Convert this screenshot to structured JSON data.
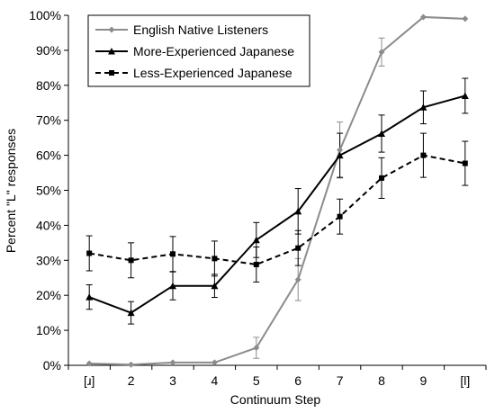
{
  "chart_data": {
    "type": "line",
    "title": "",
    "xlabel": "Continuum Step",
    "ylabel": "Percent \"L\" responses",
    "categories": [
      "[ɹ]",
      "2",
      "3",
      "4",
      "5",
      "6",
      "7",
      "8",
      "9",
      "[l]"
    ],
    "ylim": [
      0,
      100
    ],
    "yticks": [
      "0%",
      "10%",
      "20%",
      "30%",
      "40%",
      "50%",
      "60%",
      "70%",
      "80%",
      "90%",
      "100%"
    ],
    "grid": false,
    "legend_position": "top-left",
    "series": [
      {
        "name": "English Native Listeners",
        "color": "#8c8c8c",
        "line_style": "solid",
        "marker": "diamond",
        "values": [
          0.5,
          0.2,
          0.8,
          0.8,
          5,
          24.5,
          61.5,
          89.5,
          99.5,
          99
        ],
        "error": [
          0,
          0,
          0,
          0,
          3,
          6,
          8,
          4,
          0,
          0
        ]
      },
      {
        "name": "More-Experienced Japanese",
        "color": "#000000",
        "line_style": "solid",
        "marker": "triangle",
        "values": [
          19.5,
          15,
          22.7,
          22.7,
          35.8,
          44,
          60,
          66.2,
          73.7,
          77
        ],
        "error": [
          3.5,
          3.2,
          4,
          3.3,
          5,
          6.5,
          6.3,
          5.3,
          4.7,
          5
        ]
      },
      {
        "name": "Less-Experienced Japanese",
        "color": "#000000",
        "line_style": "dashed",
        "marker": "square",
        "values": [
          32,
          30,
          31.8,
          30.5,
          28.8,
          33.5,
          42.5,
          53.5,
          60,
          57.7
        ],
        "error": [
          5,
          5,
          5,
          5,
          5,
          5,
          5,
          5.8,
          6.3,
          6.3
        ]
      }
    ]
  }
}
